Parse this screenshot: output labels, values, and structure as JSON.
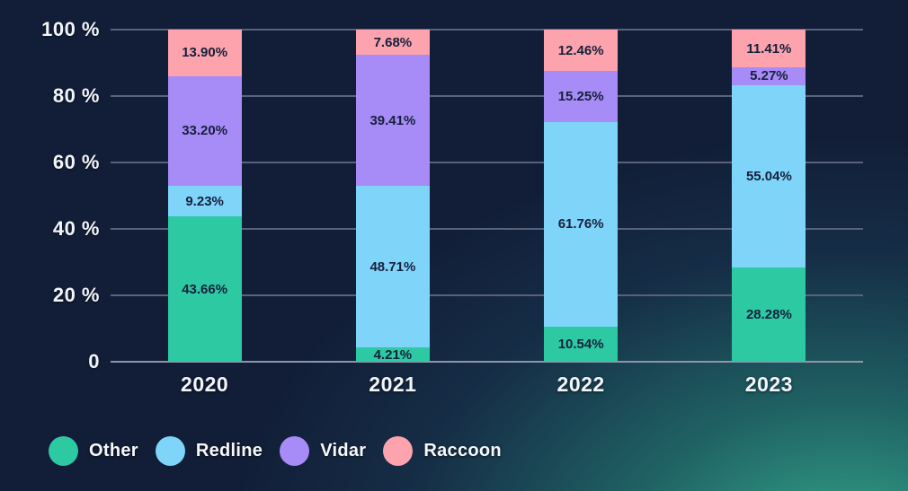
{
  "background": {
    "base_color": "#121d37",
    "glow_color": "#2c9a80"
  },
  "chart_data": {
    "type": "bar",
    "stacked": true,
    "orientation": "vertical",
    "title": "",
    "xlabel": "",
    "ylabel": "",
    "grid": true,
    "legend_position": "bottom",
    "categories": [
      "2020",
      "2021",
      "2022",
      "2023"
    ],
    "series": [
      {
        "name": "Other",
        "color": "#2cc9a3",
        "values": [
          43.66,
          4.21,
          10.54,
          28.28
        ],
        "labels": [
          "43.66%",
          "4.21%",
          "10.54%",
          "28.28%"
        ]
      },
      {
        "name": "Redline",
        "color": "#7fd4fa",
        "values": [
          9.23,
          48.71,
          61.76,
          55.04
        ],
        "labels": [
          "9.23%",
          "48.71%",
          "61.76%",
          "55.04%"
        ]
      },
      {
        "name": "Vidar",
        "color": "#a78bf7",
        "values": [
          33.2,
          39.41,
          15.25,
          5.27
        ],
        "labels": [
          "33.20%",
          "39.41%",
          "15.25%",
          "5.27%"
        ]
      },
      {
        "name": "Raccoon",
        "color": "#fca3ae",
        "values": [
          13.9,
          7.68,
          12.46,
          11.41
        ],
        "labels": [
          "13.90%",
          "7.68%",
          "12.46%",
          "11.41%"
        ]
      }
    ],
    "y_axis": {
      "min": 0,
      "max": 100,
      "ticks": [
        {
          "value": 100,
          "label": "100 %"
        },
        {
          "value": 80,
          "label": "80 %"
        },
        {
          "value": 60,
          "label": "60 %"
        },
        {
          "value": 40,
          "label": "40 %"
        },
        {
          "value": 20,
          "label": "20 %"
        },
        {
          "value": 0,
          "label": "0"
        }
      ]
    },
    "legend": [
      {
        "label": "Other",
        "color": "#2cc9a3"
      },
      {
        "label": "Redline",
        "color": "#7fd4fa"
      },
      {
        "label": "Vidar",
        "color": "#a78bf7"
      },
      {
        "label": "Raccoon",
        "color": "#fca3ae"
      }
    ]
  }
}
